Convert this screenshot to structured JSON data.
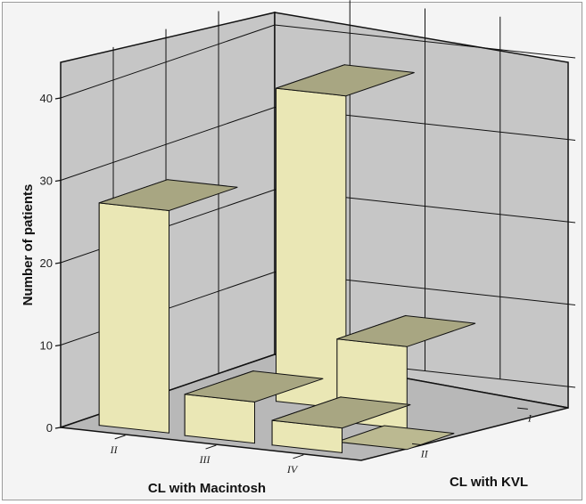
{
  "chart_data": {
    "type": "bar",
    "subtype": "3d-clustered",
    "ylabel": "Number of patients",
    "xlabel": "CL with Macintosh",
    "zlabel": "CL with KVL",
    "ylim": [
      0,
      40
    ],
    "yticks": [
      0,
      10,
      20,
      30,
      40
    ],
    "x_categories": [
      "II",
      "III",
      "IV"
    ],
    "z_categories": [
      "II",
      "I"
    ],
    "bars": [
      {
        "x": "II",
        "z": "II",
        "value": 27
      },
      {
        "x": "III",
        "z": "II",
        "value": 5
      },
      {
        "x": "IV",
        "z": "II",
        "value": 3
      },
      {
        "x": "III",
        "z": "I",
        "value": 38
      },
      {
        "x": "IV",
        "z": "I",
        "value": 10
      },
      {
        "x": "IV",
        "z": "I",
        "value": 0
      }
    ],
    "grid": true,
    "bar_color": "#eae7b5"
  }
}
